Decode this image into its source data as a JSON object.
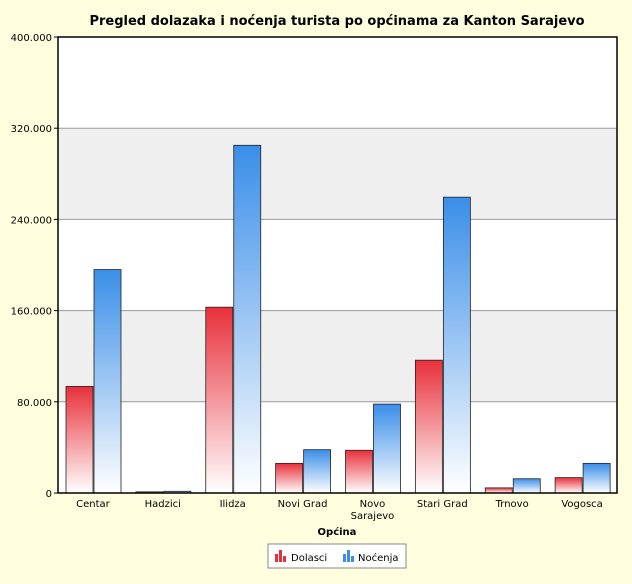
{
  "chart_data": {
    "type": "bar",
    "title": "Pregled dolazaka i noćenja turista po općinama za Kanton Sarajevo",
    "xlabel": "Općina",
    "ylabel": "",
    "categories": [
      "Centar",
      "Hadzici",
      "Ilidza",
      "Novi Grad",
      "Novo Sarajevo",
      "Stari Grad",
      "Trnovo",
      "Vogosca"
    ],
    "series": [
      {
        "name": "Dolasci",
        "values": [
          93500,
          1000,
          163000,
          26000,
          37500,
          116500,
          4500,
          13500
        ],
        "color": "#e8303a"
      },
      {
        "name": "Noćenja",
        "values": [
          196000,
          1500,
          305000,
          38000,
          78000,
          259500,
          12500,
          26000
        ],
        "color": "#3a8ee8"
      }
    ],
    "ylim": [
      0,
      400000
    ],
    "yticks": [
      0,
      80000,
      160000,
      240000,
      320000,
      400000
    ],
    "ytick_labels": [
      "0",
      "80.000",
      "160.000",
      "240.000",
      "320.000",
      "400.000"
    ],
    "grid": true,
    "legend_position": "bottom-center"
  }
}
